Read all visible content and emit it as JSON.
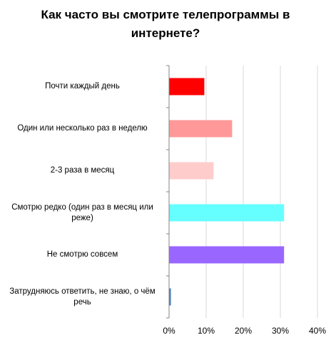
{
  "chart_data": {
    "type": "bar",
    "orientation": "horizontal",
    "title_lines": [
      "Как часто вы смотрите телепрограммы в",
      "интернете?"
    ],
    "categories": [
      [
        "Почти каждый день"
      ],
      [
        "Один или несколько раз в неделю"
      ],
      [
        "2-3 раза в месяц"
      ],
      [
        "Смотрю редко (один раз в месяц или",
        "реже)"
      ],
      [
        "Не смотрю совсем"
      ],
      [
        "Затрудняюсь ответить, не знаю, о чём",
        "речь"
      ]
    ],
    "values": [
      9.5,
      17,
      12,
      31,
      31,
      0.5
    ],
    "colors": [
      "#ff0000",
      "#ff9999",
      "#ffcccc",
      "#66ffff",
      "#9966ff",
      "#4f81bd"
    ],
    "xlim": [
      0,
      40
    ],
    "xticks": [
      0,
      10,
      20,
      30,
      40
    ],
    "tick_suffix": "%",
    "grid": true,
    "legend": "none"
  }
}
